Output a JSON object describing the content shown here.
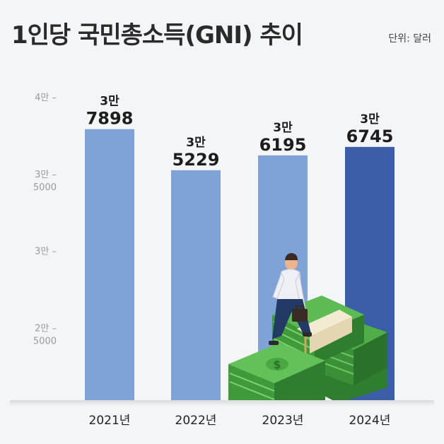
{
  "chart_data": {
    "type": "bar",
    "title": "1인당 국민총소득(GNI) 추이",
    "unit_label": "단위: 달러",
    "categories": [
      "2021년",
      "2022년",
      "2023년",
      "2024년"
    ],
    "values": [
      37898,
      35229,
      36195,
      36745
    ],
    "value_labels": [
      [
        "3만",
        "7898"
      ],
      [
        "3만",
        "5229"
      ],
      [
        "3만",
        "6195"
      ],
      [
        "3만",
        "6745"
      ]
    ],
    "y_ticks": [
      {
        "value": 40000,
        "label": [
          "4만 –"
        ]
      },
      {
        "value": 35000,
        "label": [
          "3만 –",
          "5000"
        ]
      },
      {
        "value": 30000,
        "label": [
          "3만 –"
        ]
      },
      {
        "value": 25000,
        "label": [
          "2만 –",
          "5000"
        ]
      }
    ],
    "ylim": [
      20000,
      40000
    ],
    "grid": false,
    "colors": {
      "bar": "#7fa3d6",
      "highlight_bar": "#3a5fa6",
      "background": "#f4f5f7",
      "money_green": "#3f9a3a"
    },
    "highlight_index": 3,
    "illustration": "businessman-walking-on-money-stacks"
  }
}
